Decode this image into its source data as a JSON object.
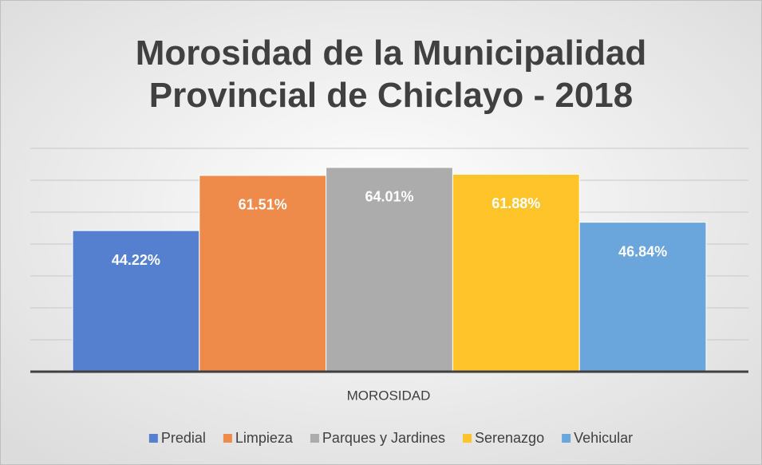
{
  "chart_data": {
    "type": "bar",
    "title": "Morosidad de la Municipalidad Provincial de Chiclayo - 2018",
    "categories": [
      "MOROSIDAD"
    ],
    "series": [
      {
        "name": "Predial",
        "color": "#5580d0",
        "values": [
          44.22
        ],
        "value_labels": [
          "44.22%"
        ]
      },
      {
        "name": "Limpieza",
        "color": "#ee8a4a",
        "values": [
          61.51
        ],
        "value_labels": [
          "61.51%"
        ]
      },
      {
        "name": "Parques y Jardines",
        "color": "#acacac",
        "values": [
          64.01
        ],
        "value_labels": [
          "64.01%"
        ]
      },
      {
        "name": "Serenazgo",
        "color": "#fec42a",
        "values": [
          61.88
        ],
        "value_labels": [
          "61.88%"
        ]
      },
      {
        "name": "Vehicular",
        "color": "#6aa5dc",
        "values": [
          46.84
        ],
        "value_labels": [
          "46.84%"
        ]
      }
    ],
    "ylim": [
      0,
      70
    ],
    "yticks": [
      0,
      10,
      20,
      30,
      40,
      50,
      60,
      70
    ],
    "grid": true,
    "legend": "bottom"
  }
}
